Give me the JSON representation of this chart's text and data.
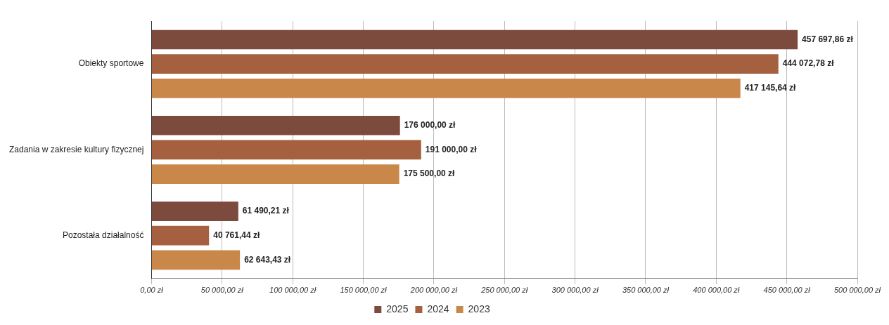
{
  "chart_data": {
    "type": "bar",
    "orientation": "horizontal",
    "categories": [
      "Obiekty sportowe",
      "Zadania w zakresie kultury fizycznej",
      "Pozostała działalność"
    ],
    "series": [
      {
        "name": "2025",
        "color": "#7d4a3e",
        "values": [
          457697.86,
          176000.0,
          61490.21
        ],
        "value_labels": [
          "457 697,86 zł",
          "176 000,00 zł",
          "61 490,21 zł"
        ]
      },
      {
        "name": "2024",
        "color": "#a5603f",
        "values": [
          444072.78,
          191000.0,
          40761.44
        ],
        "value_labels": [
          "444 072,78 zł",
          "191 000,00 zł",
          "40 761,44 zł"
        ]
      },
      {
        "name": "2023",
        "color": "#c9874a",
        "values": [
          417145.64,
          175500.0,
          62643.43
        ],
        "value_labels": [
          "417 145,64 zł",
          "175 500,00 zł",
          "62 643,43 zł"
        ]
      }
    ],
    "xlim": [
      0,
      500000
    ],
    "xticks": [
      {
        "value": 0,
        "label": "0,00 zł"
      },
      {
        "value": 50000,
        "label": "50 000,00 zł"
      },
      {
        "value": 100000,
        "label": "100 000,00 zł"
      },
      {
        "value": 150000,
        "label": "150 000,00 zł"
      },
      {
        "value": 200000,
        "label": "200 000,00 zł"
      },
      {
        "value": 250000,
        "label": "250 000,00 zł"
      },
      {
        "value": 300000,
        "label": "300 000,00 zł"
      },
      {
        "value": 350000,
        "label": "350 000,00 zł"
      },
      {
        "value": 400000,
        "label": "400 000,00 zł"
      },
      {
        "value": 450000,
        "label": "450 000,00 zł"
      },
      {
        "value": 500000,
        "label": "500 000,00 zł"
      }
    ],
    "grid": "x",
    "legend": "bottom"
  }
}
